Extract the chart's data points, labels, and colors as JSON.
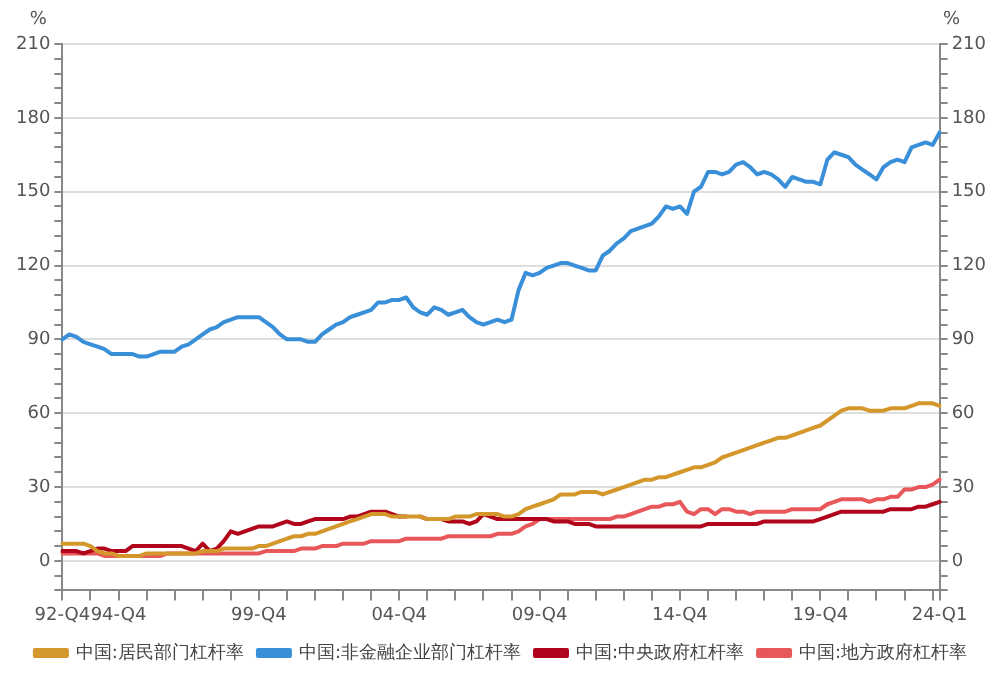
{
  "chart_data": {
    "type": "line",
    "ylabel": "%",
    "y2label": "%",
    "grid": "y",
    "legend": "bottom",
    "marker": "none",
    "line_style": "solid",
    "categories": [
      "92-Q4",
      null,
      null,
      null,
      null,
      null,
      null,
      null,
      "94-Q4",
      null,
      null,
      null,
      null,
      null,
      null,
      null,
      null,
      null,
      null,
      null,
      null,
      null,
      null,
      null,
      null,
      null,
      null,
      null,
      "99-Q4",
      null,
      null,
      null,
      null,
      null,
      null,
      null,
      null,
      null,
      null,
      null,
      null,
      null,
      null,
      null,
      null,
      null,
      null,
      null,
      "04-Q4",
      null,
      null,
      null,
      null,
      null,
      null,
      null,
      null,
      null,
      null,
      null,
      null,
      null,
      null,
      null,
      null,
      null,
      null,
      null,
      "09-Q4",
      null,
      null,
      null,
      null,
      null,
      null,
      null,
      null,
      null,
      null,
      null,
      null,
      null,
      null,
      null,
      null,
      null,
      null,
      null,
      "14-Q4",
      null,
      null,
      null,
      null,
      null,
      null,
      null,
      null,
      null,
      null,
      null,
      null,
      null,
      null,
      null,
      null,
      null,
      null,
      null,
      "19-Q4",
      null,
      null,
      null,
      null,
      null,
      null,
      null,
      null,
      null,
      null,
      null,
      null,
      null,
      null,
      null,
      null,
      "24-Q1"
    ],
    "ylim": [
      -12,
      210
    ],
    "yticks": [
      {
        "value": -12,
        "label": null
      },
      {
        "value": -6,
        "label": null
      },
      0,
      {
        "value": 6,
        "label": null
      },
      {
        "value": 12,
        "label": null
      },
      {
        "value": 18,
        "label": null
      },
      {
        "value": 24,
        "label": null
      },
      30,
      {
        "value": 36,
        "label": null
      },
      {
        "value": 42,
        "label": null
      },
      {
        "value": 48,
        "label": null
      },
      {
        "value": 54,
        "label": null
      },
      60,
      {
        "value": 66,
        "label": null
      },
      {
        "value": 72,
        "label": null
      },
      {
        "value": 78,
        "label": null
      },
      {
        "value": 84,
        "label": null
      },
      90,
      {
        "value": 96,
        "label": null
      },
      {
        "value": 102,
        "label": null
      },
      {
        "value": 108,
        "label": null
      },
      {
        "value": 114,
        "label": null
      },
      120,
      {
        "value": 126,
        "label": null
      },
      {
        "value": 132,
        "label": null
      },
      {
        "value": 138,
        "label": null
      },
      {
        "value": 144,
        "label": null
      },
      150,
      {
        "value": 156,
        "label": null
      },
      {
        "value": 162,
        "label": null
      },
      {
        "value": 168,
        "label": null
      },
      {
        "value": 174,
        "label": null
      },
      180,
      {
        "value": 186,
        "label": null
      },
      {
        "value": 192,
        "label": null
      },
      {
        "value": 198,
        "label": null
      },
      {
        "value": 204,
        "label": null
      },
      210
    ],
    "y2lim": [
      -12,
      210
    ],
    "y2ticks": [
      {
        "value": -12,
        "label": null
      },
      {
        "value": -6,
        "label": null
      },
      0,
      {
        "value": 6,
        "label": null
      },
      {
        "value": 12,
        "label": null
      },
      {
        "value": 18,
        "label": null
      },
      {
        "value": 24,
        "label": null
      },
      30,
      {
        "value": 36,
        "label": null
      },
      {
        "value": 42,
        "label": null
      },
      {
        "value": 48,
        "label": null
      },
      {
        "value": 54,
        "label": null
      },
      60,
      {
        "value": 66,
        "label": null
      },
      {
        "value": 72,
        "label": null
      },
      {
        "value": 78,
        "label": null
      },
      {
        "value": 84,
        "label": null
      },
      90,
      {
        "value": 96,
        "label": null
      },
      {
        "value": 102,
        "label": null
      },
      {
        "value": 108,
        "label": null
      },
      {
        "value": 114,
        "label": null
      },
      120,
      {
        "value": 126,
        "label": null
      },
      {
        "value": 132,
        "label": null
      },
      {
        "value": 138,
        "label": null
      },
      {
        "value": 144,
        "label": null
      },
      150,
      {
        "value": 156,
        "label": null
      },
      {
        "value": 162,
        "label": null
      },
      {
        "value": 168,
        "label": null
      },
      {
        "value": 174,
        "label": null
      },
      180,
      {
        "value": 186,
        "label": null
      },
      {
        "value": 192,
        "label": null
      },
      {
        "value": 198,
        "label": null
      },
      {
        "value": 204,
        "label": null
      },
      210
    ],
    "series": [
      {
        "name": "中国:居民部门杠杆率",
        "color": "#d4972b",
        "values": [
          7,
          7,
          7,
          7,
          6,
          4,
          3,
          3,
          2,
          2,
          2,
          2,
          3,
          3,
          3,
          3,
          3,
          3,
          3,
          3,
          4,
          4,
          4,
          5,
          5,
          5,
          5,
          5,
          6,
          6,
          7,
          8,
          9,
          10,
          10,
          11,
          11,
          12,
          13,
          14,
          15,
          16,
          17,
          18,
          19,
          19,
          19,
          18,
          18,
          18,
          18,
          18,
          17,
          17,
          17,
          17,
          18,
          18,
          18,
          19,
          19,
          19,
          19,
          18,
          18,
          19,
          21,
          22,
          23,
          24,
          25,
          27,
          27,
          27,
          28,
          28,
          28,
          27,
          28,
          29,
          30,
          31,
          32,
          33,
          33,
          34,
          34,
          35,
          36,
          37,
          38,
          38,
          39,
          40,
          42,
          43,
          44,
          45,
          46,
          47,
          48,
          49,
          50,
          50,
          51,
          52,
          53,
          54,
          55,
          57,
          59,
          61,
          62,
          62,
          62,
          61,
          61,
          61,
          62,
          62,
          62,
          63,
          64,
          64,
          64,
          63
        ]
      },
      {
        "name": "中国:非金融企业部门杠杆率",
        "color": "#3a8fd9",
        "values": [
          90,
          92,
          91,
          89,
          88,
          87,
          86,
          84,
          84,
          84,
          84,
          83,
          83,
          84,
          85,
          85,
          85,
          87,
          88,
          90,
          92,
          94,
          95,
          97,
          98,
          99,
          99,
          99,
          99,
          97,
          95,
          92,
          90,
          90,
          90,
          89,
          89,
          92,
          94,
          96,
          97,
          99,
          100,
          101,
          102,
          105,
          105,
          106,
          106,
          107,
          103,
          101,
          100,
          103,
          102,
          100,
          101,
          102,
          99,
          97,
          96,
          97,
          98,
          97,
          98,
          110,
          117,
          116,
          117,
          119,
          120,
          121,
          121,
          120,
          119,
          118,
          118,
          124,
          126,
          129,
          131,
          134,
          135,
          136,
          137,
          140,
          144,
          143,
          144,
          141,
          150,
          152,
          158,
          158,
          157,
          158,
          161,
          162,
          160,
          157,
          158,
          157,
          155,
          152,
          156,
          155,
          154,
          154,
          153,
          163,
          166,
          165,
          164,
          161,
          159,
          157,
          155,
          160,
          162,
          163,
          162,
          168,
          169,
          170,
          169,
          174
        ]
      },
      {
        "name": "中国:中央政府杠杆率",
        "color": "#b0051a",
        "values": [
          4,
          4,
          4,
          3,
          4,
          5,
          5,
          4,
          4,
          4,
          6,
          6,
          6,
          6,
          6,
          6,
          6,
          6,
          5,
          4,
          7,
          4,
          5,
          8,
          12,
          11,
          12,
          13,
          14,
          14,
          14,
          15,
          16,
          15,
          15,
          16,
          17,
          17,
          17,
          17,
          17,
          18,
          18,
          19,
          20,
          20,
          20,
          19,
          18,
          18,
          null,
          18,
          17,
          17,
          17,
          16,
          16,
          16,
          15,
          16,
          19,
          18,
          17,
          17,
          17,
          17,
          17,
          17,
          17,
          17,
          16,
          16,
          16,
          15,
          15,
          15,
          14,
          14,
          14,
          14,
          14,
          14,
          14,
          14,
          14,
          14,
          14,
          14,
          14,
          14,
          14,
          14,
          15,
          15,
          15,
          15,
          15,
          15,
          15,
          15,
          16,
          16,
          16,
          16,
          16,
          16,
          16,
          16,
          17,
          18,
          19,
          20,
          20,
          20,
          20,
          20,
          20,
          20,
          21,
          21,
          21,
          21,
          22,
          22,
          23,
          24
        ]
      },
      {
        "name": "中国:地方政府杠杆率",
        "color": "#e8575a",
        "values": [
          3,
          3,
          3,
          3,
          3,
          3,
          2,
          2,
          2,
          2,
          2,
          2,
          2,
          2,
          2,
          3,
          3,
          3,
          3,
          3,
          3,
          3,
          3,
          3,
          3,
          3,
          3,
          3,
          3,
          4,
          4,
          4,
          4,
          4,
          5,
          5,
          5,
          6,
          6,
          6,
          7,
          7,
          7,
          7,
          8,
          8,
          8,
          8,
          8,
          9,
          9,
          9,
          9,
          9,
          9,
          10,
          10,
          10,
          10,
          10,
          10,
          10,
          11,
          11,
          11,
          12,
          14,
          15,
          17,
          17,
          17,
          17,
          17,
          17,
          17,
          17,
          17,
          17,
          17,
          18,
          18,
          19,
          20,
          21,
          22,
          22,
          23,
          23,
          24,
          20,
          19,
          21,
          21,
          19,
          21,
          21,
          20,
          20,
          19,
          20,
          20,
          20,
          20,
          20,
          21,
          21,
          21,
          21,
          21,
          23,
          24,
          25,
          25,
          25,
          25,
          24,
          25,
          25,
          26,
          26,
          29,
          29,
          30,
          30,
          31,
          33
        ]
      }
    ]
  }
}
